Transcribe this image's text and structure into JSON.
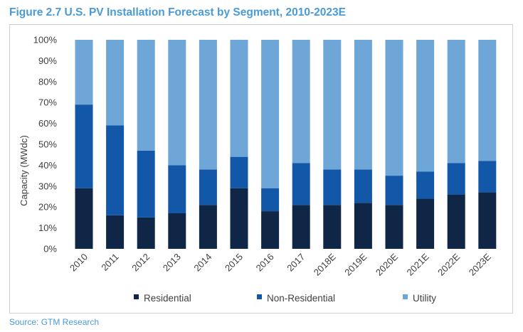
{
  "title": "Figure 2.7 U.S. PV Installation Forecast by Segment, 2010-2023E",
  "source": "Source: GTM Research",
  "chart_data": {
    "type": "bar",
    "stacked": true,
    "percent": true,
    "categories": [
      "2010",
      "2011",
      "2012",
      "2013",
      "2014",
      "2015",
      "2016",
      "2017",
      "2018E",
      "2019E",
      "2020E",
      "2021E",
      "2022E",
      "2023E"
    ],
    "series": [
      {
        "name": "Residential",
        "color": "#0f2647",
        "values": [
          29,
          16,
          15,
          17,
          21,
          29,
          18,
          21,
          21,
          22,
          21,
          24,
          26,
          27
        ]
      },
      {
        "name": "Non-Residential",
        "color": "#1358a8",
        "values": [
          40,
          43,
          32,
          23,
          17,
          15,
          11,
          20,
          17,
          16,
          14,
          13,
          15,
          15
        ]
      },
      {
        "name": "Utility",
        "color": "#6ea6d8",
        "values": [
          31,
          41,
          53,
          60,
          62,
          56,
          71,
          59,
          62,
          62,
          65,
          63,
          59,
          58
        ]
      }
    ],
    "ylabel": "Capacity (MWdc)",
    "ylim": [
      0,
      100
    ],
    "yticks": [
      "0%",
      "10%",
      "20%",
      "30%",
      "40%",
      "50%",
      "60%",
      "70%",
      "80%",
      "90%",
      "100%"
    ],
    "grid": false,
    "legend_position": "bottom"
  }
}
